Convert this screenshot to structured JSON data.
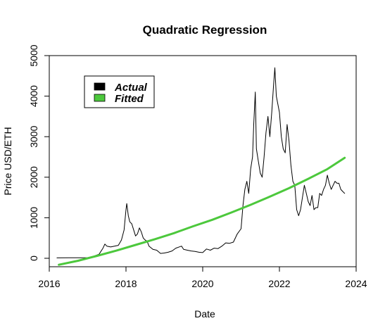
{
  "chart_data": {
    "type": "line",
    "title": "Quadratic Regression",
    "xlabel": "Date",
    "ylabel": "Price USD/ETH",
    "xlim": [
      2016.0,
      2024.0
    ],
    "ylim": [
      0,
      5000
    ],
    "xticks": [
      "2016",
      "2018",
      "2020",
      "2022",
      "2024"
    ],
    "yticks": [
      "0",
      "1000",
      "2000",
      "3000",
      "4000",
      "5000"
    ],
    "grid": false,
    "legend": {
      "position": "top-left",
      "entries": [
        {
          "label": "Actual",
          "color": "#000000"
        },
        {
          "label": "Fitted",
          "color": "#4cc83c"
        }
      ]
    },
    "series": [
      {
        "name": "Actual",
        "color": "#000000",
        "x": [
          2016.2,
          2016.5,
          2016.8,
          2017.0,
          2017.15,
          2017.3,
          2017.4,
          2017.45,
          2017.5,
          2017.6,
          2017.7,
          2017.8,
          2017.88,
          2017.95,
          2018.0,
          2018.02,
          2018.06,
          2018.1,
          2018.15,
          2018.2,
          2018.25,
          2018.3,
          2018.35,
          2018.4,
          2018.45,
          2018.5,
          2018.55,
          2018.6,
          2018.7,
          2018.8,
          2018.9,
          2019.0,
          2019.1,
          2019.2,
          2019.3,
          2019.45,
          2019.5,
          2019.6,
          2019.7,
          2019.8,
          2019.9,
          2020.0,
          2020.1,
          2020.2,
          2020.3,
          2020.4,
          2020.5,
          2020.6,
          2020.7,
          2020.8,
          2020.9,
          2021.0,
          2021.05,
          2021.1,
          2021.15,
          2021.2,
          2021.25,
          2021.3,
          2021.33,
          2021.37,
          2021.4,
          2021.45,
          2021.5,
          2021.55,
          2021.6,
          2021.65,
          2021.7,
          2021.75,
          2021.8,
          2021.85,
          2021.88,
          2021.92,
          2021.96,
          2022.0,
          2022.05,
          2022.1,
          2022.15,
          2022.2,
          2022.25,
          2022.3,
          2022.35,
          2022.4,
          2022.45,
          2022.5,
          2022.55,
          2022.6,
          2022.65,
          2022.7,
          2022.75,
          2022.8,
          2022.85,
          2022.9,
          2022.95,
          2023.0,
          2023.05,
          2023.1,
          2023.15,
          2023.2,
          2023.25,
          2023.3,
          2023.35,
          2023.4,
          2023.45,
          2023.5,
          2023.55,
          2023.6,
          2023.65,
          2023.7
        ],
        "y": [
          10,
          12,
          12,
          15,
          50,
          100,
          250,
          350,
          300,
          280,
          300,
          320,
          450,
          700,
          1200,
          1350,
          1050,
          900,
          850,
          700,
          550,
          600,
          750,
          650,
          500,
          450,
          420,
          300,
          220,
          200,
          120,
          130,
          150,
          180,
          250,
          300,
          220,
          200,
          180,
          170,
          150,
          140,
          230,
          200,
          250,
          240,
          300,
          380,
          370,
          400,
          600,
          730,
          1300,
          1700,
          1900,
          1600,
          2200,
          2500,
          3300,
          4100,
          2700,
          2400,
          2100,
          2000,
          2500,
          3100,
          3500,
          3000,
          3600,
          4300,
          4700,
          4000,
          3800,
          3600,
          3000,
          2700,
          2600,
          3300,
          2900,
          2300,
          1900,
          1800,
          1200,
          1050,
          1200,
          1500,
          1800,
          1600,
          1400,
          1300,
          1550,
          1200,
          1250,
          1250,
          1600,
          1550,
          1700,
          1800,
          2050,
          1850,
          1700,
          1800,
          1900,
          1850,
          1850,
          1700,
          1650,
          1600
        ]
      },
      {
        "name": "Fitted",
        "color": "#4cc83c",
        "model": "quadratic",
        "x": [
          2016.25,
          2016.75,
          2017.25,
          2017.75,
          2018.25,
          2018.75,
          2019.25,
          2019.75,
          2020.25,
          2020.75,
          2021.25,
          2021.75,
          2022.25,
          2022.75,
          2023.25,
          2023.7
        ],
        "y": [
          -160,
          -60,
          60,
          190,
          330,
          470,
          620,
          790,
          950,
          1130,
          1320,
          1520,
          1730,
          1960,
          2200,
          2480
        ]
      }
    ]
  }
}
